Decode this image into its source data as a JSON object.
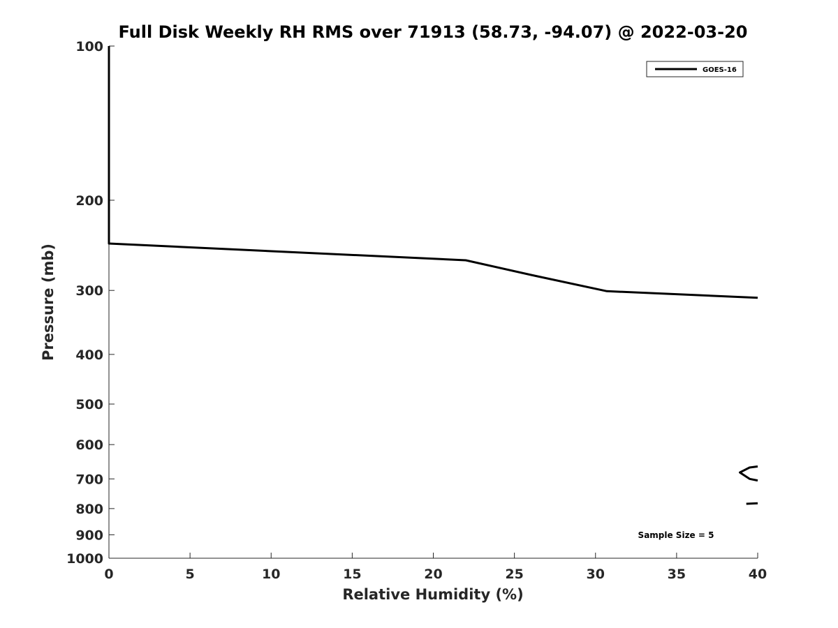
{
  "chart_data": {
    "type": "line",
    "title": "Full Disk Weekly RH RMS over 71913 (58.73, -94.07) @ 2022-03-20",
    "xlabel": "Relative Humidity (%)",
    "ylabel": "Pressure (mb)",
    "xlim": [
      0,
      40
    ],
    "ylim": [
      100,
      1000
    ],
    "y_scale": "log",
    "y_reversed": true,
    "grid": false,
    "legend_position": "top-right",
    "x_ticks": [
      0,
      5,
      10,
      15,
      20,
      25,
      30,
      35,
      40
    ],
    "y_ticks": [
      100,
      200,
      300,
      400,
      500,
      600,
      700,
      800,
      900,
      1000
    ],
    "annotation": "Sample Size = 5",
    "series": [
      {
        "name": "GOES-16",
        "color": "#000000",
        "segments": [
          {
            "x": [
              0.0,
              0.0,
              0.0,
              0.0,
              22.0,
              26.3,
              30.7,
              40.0
            ],
            "y": [
              100,
              150,
              200,
              243,
              262,
              281,
              301,
              310
            ]
          },
          {
            "x": [
              40.0,
              39.5,
              38.9,
              39.5,
              40.0
            ],
            "y": [
              662,
              665,
              680,
              700,
              705
            ]
          },
          {
            "x": [
              39.3,
              40.0
            ],
            "y": [
              783,
              781
            ]
          }
        ]
      }
    ]
  }
}
